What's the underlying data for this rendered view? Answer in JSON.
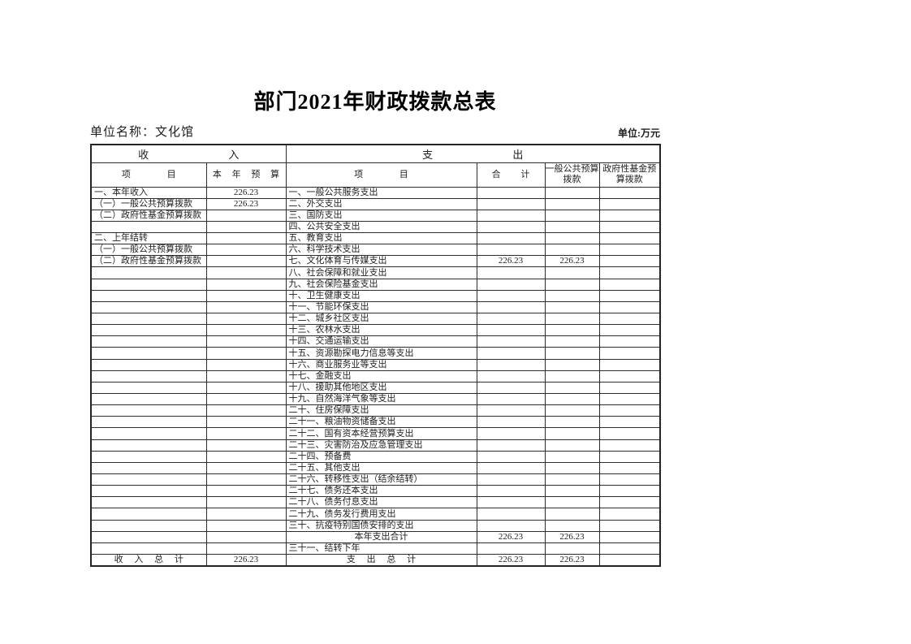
{
  "page": {
    "title": "部门2021年财政拨款总表",
    "unit_name": {
      "label": "单位名称：",
      "value": "文化馆"
    },
    "unit_label": "单位:万元"
  },
  "table": {
    "header": {
      "income_group": "收 入",
      "expense_group": "支 出",
      "income_item_col": "项 目",
      "income_budget_col": "本 年 预 算",
      "expense_item_col": "项 目",
      "total_col": "合 计",
      "general_public_col": "一般公共预算拨款",
      "gov_fund_col": "政府性基金预算拨款"
    },
    "rows": [
      {
        "in": "一、本年收入",
        "inv": "226.23",
        "ex": "一、一般公共服务支出",
        "total": "",
        "gen": "",
        "fund": ""
      },
      {
        "in": "（一）一般公共预算拨款",
        "inv": "226.23",
        "ex": "二、外交支出",
        "total": "",
        "gen": "",
        "fund": ""
      },
      {
        "in": "（二）政府性基金预算拨款",
        "inv": "",
        "ex": "三、国防支出",
        "total": "",
        "gen": "",
        "fund": ""
      },
      {
        "in": "",
        "inv": "",
        "ex": "四、公共安全支出",
        "total": "",
        "gen": "",
        "fund": ""
      },
      {
        "in": "二、上年结转",
        "inv": "",
        "ex": "五、教育支出",
        "total": "",
        "gen": "",
        "fund": ""
      },
      {
        "in": "（一）一般公共预算拨款",
        "inv": "",
        "ex": "六、科学技术支出",
        "total": "",
        "gen": "",
        "fund": ""
      },
      {
        "in": "（二）政府性基金预算拨款",
        "inv": "",
        "ex": "七、文化体育与传媒支出",
        "total": "226.23",
        "gen": "226.23",
        "fund": ""
      },
      {
        "in": "",
        "inv": "",
        "ex": "八、社会保障和就业支出",
        "total": "",
        "gen": "",
        "fund": ""
      },
      {
        "in": "",
        "inv": "",
        "ex": "九、社会保险基金支出",
        "total": "",
        "gen": "",
        "fund": ""
      },
      {
        "in": "",
        "inv": "",
        "ex": "十、卫生健康支出",
        "total": "",
        "gen": "",
        "fund": ""
      },
      {
        "in": "",
        "inv": "",
        "ex": "十一、节能环保支出",
        "total": "",
        "gen": "",
        "fund": ""
      },
      {
        "in": "",
        "inv": "",
        "ex": "十二、城乡社区支出",
        "total": "",
        "gen": "",
        "fund": ""
      },
      {
        "in": "",
        "inv": "",
        "ex": "十三、农林水支出",
        "total": "",
        "gen": "",
        "fund": ""
      },
      {
        "in": "",
        "inv": "",
        "ex": "十四、交通运输支出",
        "total": "",
        "gen": "",
        "fund": ""
      },
      {
        "in": "",
        "inv": "",
        "ex": "十五、资源勘探电力信息等支出",
        "total": "",
        "gen": "",
        "fund": ""
      },
      {
        "in": "",
        "inv": "",
        "ex": "十六、商业服务业等支出",
        "total": "",
        "gen": "",
        "fund": ""
      },
      {
        "in": "",
        "inv": "",
        "ex": "十七、金融支出",
        "total": "",
        "gen": "",
        "fund": ""
      },
      {
        "in": "",
        "inv": "",
        "ex": "十八、援助其他地区支出",
        "total": "",
        "gen": "",
        "fund": ""
      },
      {
        "in": "",
        "inv": "",
        "ex": "十九、自然海洋气象等支出",
        "total": "",
        "gen": "",
        "fund": ""
      },
      {
        "in": "",
        "inv": "",
        "ex": "二十、住房保障支出",
        "total": "",
        "gen": "",
        "fund": ""
      },
      {
        "in": "",
        "inv": "",
        "ex": "二十一、粮油物资储备支出",
        "total": "",
        "gen": "",
        "fund": ""
      },
      {
        "in": "",
        "inv": "",
        "ex": "二十二、国有资本经营预算支出",
        "total": "",
        "gen": "",
        "fund": ""
      },
      {
        "in": "",
        "inv": "",
        "ex": "二十三、灾害防治及应急管理支出",
        "total": "",
        "gen": "",
        "fund": ""
      },
      {
        "in": "",
        "inv": "",
        "ex": "二十四、预备费",
        "total": "",
        "gen": "",
        "fund": ""
      },
      {
        "in": "",
        "inv": "",
        "ex": "二十五、其他支出",
        "total": "",
        "gen": "",
        "fund": ""
      },
      {
        "in": "",
        "inv": "",
        "ex": "二十六、转移性支出（结余结转）",
        "total": "",
        "gen": "",
        "fund": ""
      },
      {
        "in": "",
        "inv": "",
        "ex": "二十七、债务还本支出",
        "total": "",
        "gen": "",
        "fund": ""
      },
      {
        "in": "",
        "inv": "",
        "ex": "二十八、债务付息支出",
        "total": "",
        "gen": "",
        "fund": ""
      },
      {
        "in": "",
        "inv": "",
        "ex": "二十九、债务发行费用支出",
        "total": "",
        "gen": "",
        "fund": ""
      },
      {
        "in": "",
        "inv": "",
        "ex": "三十、抗疫特别国债安排的支出",
        "total": "",
        "gen": "",
        "fund": ""
      },
      {
        "in": "",
        "inv": "",
        "ex": "本年支出合计",
        "ex_center": true,
        "total": "226.23",
        "gen": "226.23",
        "fund": ""
      },
      {
        "in": "",
        "inv": "",
        "ex": "三十一、结转下年",
        "total": "",
        "gen": "",
        "fund": ""
      },
      {
        "in": "收 入 总 计",
        "in_center": true,
        "in_spaced": true,
        "inv": "226.23",
        "ex": "支 出 总 计",
        "ex_center": true,
        "ex_spaced": true,
        "total": "226.23",
        "gen": "226.23",
        "fund": ""
      }
    ]
  }
}
